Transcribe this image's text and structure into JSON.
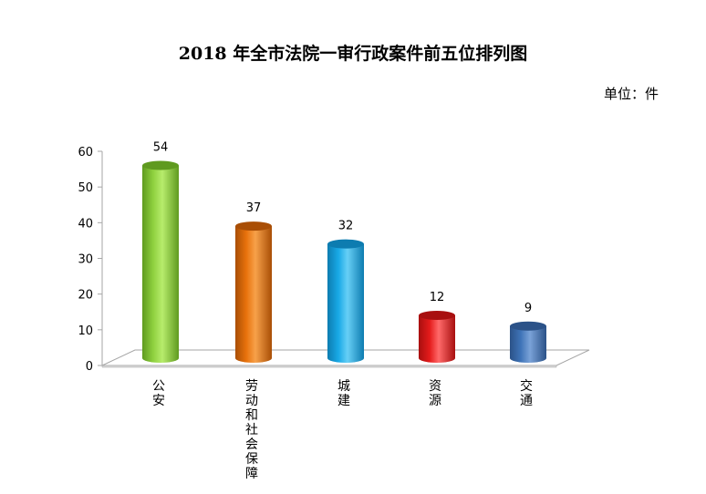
{
  "chart_data": {
    "type": "bar",
    "title": "2018 年全市法院一审行政案件前五位排列图",
    "unit": "单位：件",
    "categories": [
      "公安",
      "劳动和社会保障",
      "城建",
      "资源",
      "交通"
    ],
    "values": [
      54,
      37,
      32,
      12,
      9
    ],
    "ylim": [
      0,
      60
    ],
    "yticks": [
      0,
      10,
      20,
      30,
      40,
      50,
      60
    ],
    "bar_colors": [
      "#8fd13f",
      "#e8720c",
      "#18a9e6",
      "#e41b1b",
      "#3f74b8"
    ],
    "bar_dark_colors": [
      "#5f9a1f",
      "#a94e05",
      "#0d7cb0",
      "#a80f0f",
      "#2b5288"
    ],
    "bar_light_colors": [
      "#b7ec6c",
      "#f7a14a",
      "#67cff6",
      "#ff6a6a",
      "#7aa2d8"
    ],
    "grid": false,
    "legend": "none",
    "style": "3d-cylinder"
  }
}
